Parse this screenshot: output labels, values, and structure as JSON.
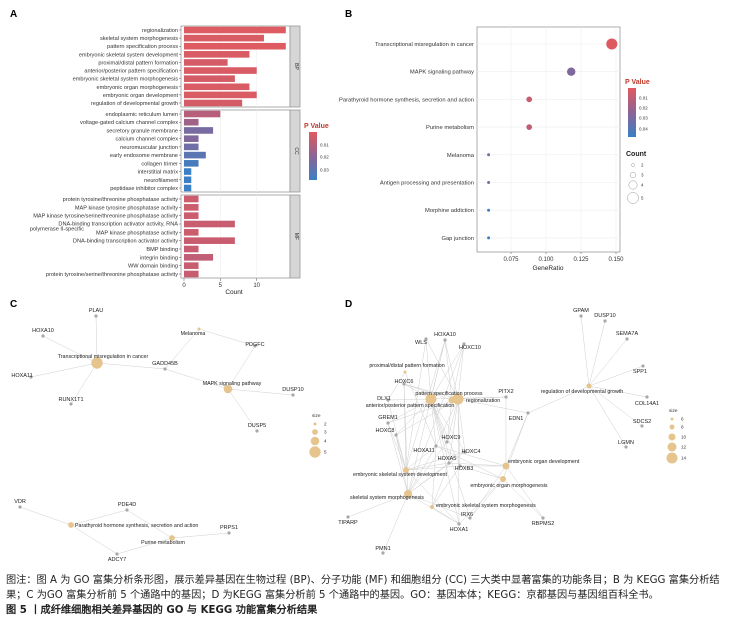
{
  "panels": {
    "a": "A",
    "b": "B",
    "c": "C",
    "d": "D"
  },
  "chart_data": [
    {
      "type": "bar",
      "orientation": "horizontal",
      "xlabel": "Count",
      "xticks": [
        0,
        5,
        10
      ],
      "xlim": [
        0,
        14.8
      ],
      "grid": true,
      "legend": {
        "title": "P Value",
        "ticks": [
          "0.01",
          "0.02",
          "0.03"
        ],
        "position": "right",
        "low_color": "#E15A5E",
        "high_color": "#3A80C4"
      },
      "facets": [
        {
          "name": "BP",
          "categories": [
            "regionalization",
            "skeletal system morphogenesis",
            "pattern specification process",
            "embryonic skeletal system development",
            "proximal/distal pattern formation",
            "anterior/posterior pattern specification",
            "embryonic skeletal system morphogenesis",
            "embryonic organ morphogenesis",
            "embryonic organ development",
            "regulation of developmental growth"
          ],
          "values": [
            14,
            11,
            14,
            9,
            6,
            10,
            7,
            9,
            10,
            8
          ],
          "pvalues": [
            0.001,
            0.002,
            0.001,
            0.002,
            0.003,
            0.002,
            0.003,
            0.002,
            0.002,
            0.003
          ]
        },
        {
          "name": "CC",
          "categories": [
            "endoplasmic reticulum lumen",
            "voltage-gated calcium channel complex",
            "secretory granule membrane",
            "calcium channel complex",
            "neuromuscular junction",
            "early endosome membrane",
            "collagen trimer",
            "interstitial matrix",
            "neurofilament",
            "peptidase inhibitor complex"
          ],
          "values": [
            5,
            2,
            4,
            2,
            2,
            3,
            2,
            1,
            1,
            1
          ],
          "pvalues": [
            0.01,
            0.015,
            0.025,
            0.023,
            0.027,
            0.032,
            0.037,
            0.04,
            0.04,
            0.04
          ]
        },
        {
          "name": "MF",
          "categories": [
            "protein tyrosine/threonine phosphatase activity",
            "MAP kinase tyrosine phosphatase activity",
            "MAP kinase tyrosine/serine/threonine phosphatase activity",
            "DNA-binding transcription activator activity, RNA polymerase II-specific",
            "MAP kinase phosphatase activity",
            "DNA-binding transcription activator activity",
            "BMP binding",
            "integrin binding",
            "WW domain binding",
            "protein tyrosine/serine/threonine phosphatase activity"
          ],
          "values": [
            2,
            2,
            2,
            7,
            2,
            7,
            2,
            4,
            2,
            2
          ],
          "pvalues": [
            0.005,
            0.005,
            0.005,
            0.006,
            0.005,
            0.006,
            0.006,
            0.008,
            0.006,
            0.006
          ]
        }
      ]
    },
    {
      "type": "scatter",
      "xlabel": "GeneRatio",
      "xticks": [
        "0.075",
        "0.100",
        "0.125",
        "0.150"
      ],
      "xlim": [
        0.053,
        0.152
      ],
      "grid": true,
      "categories": [
        "Transcriptional misregulation in cancer",
        "MAPK signaling pathway",
        "Parathyroid hormone synthesis, secretion and action",
        "Purine metabolism",
        "Melanoma",
        "Antigen processing and presentation",
        "Morphine addiction",
        "Gap junction"
      ],
      "gene_ratio": [
        0.147,
        0.118,
        0.088,
        0.088,
        0.059,
        0.059,
        0.059,
        0.059
      ],
      "count": [
        5,
        4,
        3,
        3,
        2,
        2,
        2,
        2
      ],
      "pvalues": [
        0.003,
        0.028,
        0.009,
        0.011,
        0.03,
        0.031,
        0.045,
        0.045
      ],
      "legend": {
        "color_title": "P Value",
        "color_ticks": [
          "0.01",
          "0.02",
          "0.03",
          "0.04"
        ],
        "size_title": "Count",
        "size_ticks": [
          "2",
          "3",
          "4",
          "5"
        ],
        "position": "right"
      }
    }
  ],
  "network_c": {
    "size_legend": {
      "title": "size",
      "ticks": [
        "2",
        "3",
        "4",
        "5"
      ]
    },
    "terms": [
      {
        "name": "Transcriptional misregulation in cancer",
        "size": 5
      },
      {
        "name": "MAPK signaling pathway",
        "size": 4
      },
      {
        "name": "Melanoma",
        "size": 2
      },
      {
        "name": "Parathyroid hormone synthesis, secretion and action",
        "size": 3
      },
      {
        "name": "Purine metabolism",
        "size": 3
      }
    ],
    "genes": [
      {
        "name": "PLAU",
        "terms": [
          "Transcriptional misregulation in cancer"
        ]
      },
      {
        "name": "HOXA10",
        "terms": [
          "Transcriptional misregulation in cancer"
        ]
      },
      {
        "name": "HOXA11",
        "terms": [
          "Transcriptional misregulation in cancer"
        ]
      },
      {
        "name": "RUNX1T1",
        "terms": [
          "Transcriptional misregulation in cancer"
        ]
      },
      {
        "name": "GADD45B",
        "terms": [
          "Transcriptional misregulation in cancer",
          "MAPK signaling pathway",
          "Melanoma"
        ]
      },
      {
        "name": "PDGFC",
        "terms": [
          "MAPK signaling pathway",
          "Melanoma"
        ]
      },
      {
        "name": "DUSP10",
        "terms": [
          "MAPK signaling pathway"
        ]
      },
      {
        "name": "DUSP5",
        "terms": [
          "MAPK signaling pathway"
        ]
      },
      {
        "name": "VDR",
        "terms": [
          "Parathyroid hormone synthesis, secretion and action"
        ]
      },
      {
        "name": "PDE4D",
        "terms": [
          "Parathyroid hormone synthesis, secretion and action",
          "Purine metabolism"
        ]
      },
      {
        "name": "ADCY7",
        "terms": [
          "Parathyroid hormone synthesis, secretion and action",
          "Purine metabolism"
        ]
      },
      {
        "name": "PRPS1",
        "terms": [
          "Purine metabolism"
        ]
      }
    ]
  },
  "network_d": {
    "size_legend": {
      "title": "size",
      "ticks": [
        "6",
        "8",
        "10",
        "12",
        "14"
      ]
    },
    "terms": [
      {
        "name": "regionalization",
        "size": 14
      },
      {
        "name": "pattern specification process",
        "size": 14
      },
      {
        "name": "anterior/posterior pattern specification",
        "size": 10
      },
      {
        "name": "proximal/distal pattern formation",
        "size": 6
      },
      {
        "name": "embryonic skeletal system development",
        "size": 9
      },
      {
        "name": "skeletal system morphogenesis",
        "size": 11
      },
      {
        "name": "embryonic skeletal system morphogenesis",
        "size": 7
      },
      {
        "name": "embryonic organ development",
        "size": 10
      },
      {
        "name": "embryonic organ morphogenesis",
        "size": 9
      },
      {
        "name": "regulation of developmental growth",
        "size": 8
      }
    ],
    "genes": [
      {
        "name": "GPAM",
        "terms": [
          "regulation of developmental growth"
        ]
      },
      {
        "name": "DUSP10",
        "terms": [
          "regulation of developmental growth"
        ]
      },
      {
        "name": "SEMA7A",
        "terms": [
          "regulation of developmental growth"
        ]
      },
      {
        "name": "SPP1",
        "terms": [
          "regulation of developmental growth"
        ]
      },
      {
        "name": "COL14A1",
        "terms": [
          "regulation of developmental growth"
        ]
      },
      {
        "name": "SDCS2",
        "terms": [
          "regulation of developmental growth"
        ]
      },
      {
        "name": "LGMN",
        "terms": [
          "regulation of developmental growth"
        ]
      },
      {
        "name": "EDN1",
        "terms": [
          "regulation of developmental growth",
          "embryonic organ development",
          "embryonic organ morphogenesis",
          "regionalization"
        ]
      },
      {
        "name": "PITX2",
        "terms": [
          "regionalization",
          "pattern specification process",
          "embryonic organ development"
        ]
      },
      {
        "name": "WLS",
        "terms": [
          "pattern specification process",
          "regionalization",
          "embryonic skeletal system development"
        ]
      },
      {
        "name": "HOXA10",
        "terms": [
          "pattern specification process",
          "regionalization",
          "anterior/posterior pattern specification",
          "embryonic skeletal system development",
          "skeletal system morphogenesis"
        ]
      },
      {
        "name": "HOXC10",
        "terms": [
          "pattern specification process",
          "regionalization",
          "anterior/posterior pattern specification",
          "skeletal system morphogenesis"
        ]
      },
      {
        "name": "HOXC6",
        "terms": [
          "pattern specification process",
          "regionalization",
          "anterior/posterior pattern specification",
          "embryonic skeletal system development",
          "skeletal system morphogenesis"
        ]
      },
      {
        "name": "DLX1",
        "terms": [
          "pattern specification process",
          "proximal/distal pattern formation",
          "embryonic skeletal system development"
        ]
      },
      {
        "name": "GREM1",
        "terms": [
          "pattern specification process",
          "regionalization",
          "embryonic skeletal system development",
          "skeletal system morphogenesis"
        ]
      },
      {
        "name": "HOXC8",
        "terms": [
          "pattern specification process",
          "regionalization",
          "embryonic skeletal system development",
          "skeletal system morphogenesis"
        ]
      },
      {
        "name": "HOXC9",
        "terms": [
          "pattern specification process",
          "regionalization",
          "anterior/posterior pattern specification",
          "skeletal system morphogenesis"
        ]
      },
      {
        "name": "HOXA11",
        "terms": [
          "pattern specification process",
          "regionalization",
          "proximal/distal pattern formation",
          "embryonic skeletal system development",
          "skeletal system morphogenesis",
          "embryonic skeletal system morphogenesis",
          "embryonic organ development",
          "embryonic organ morphogenesis"
        ]
      },
      {
        "name": "HOXC4",
        "terms": [
          "pattern specification process",
          "regionalization",
          "embryonic skeletal system development",
          "skeletal system morphogenesis"
        ]
      },
      {
        "name": "HOXA5",
        "terms": [
          "pattern specification process",
          "regionalization",
          "embryonic skeletal system development",
          "skeletal system morphogenesis",
          "embryonic skeletal system morphogenesis",
          "embryonic organ development"
        ]
      },
      {
        "name": "HOXB3",
        "terms": [
          "pattern specification process",
          "regionalization",
          "embryonic skeletal system development",
          "embryonic skeletal system morphogenesis",
          "embryonic organ development",
          "embryonic organ morphogenesis"
        ]
      },
      {
        "name": "IRX6",
        "terms": [
          "pattern specification process",
          "embryonic organ development",
          "embryonic organ morphogenesis",
          "skeletal system morphogenesis"
        ]
      },
      {
        "name": "HOXA1",
        "terms": [
          "pattern specification process",
          "regionalization",
          "embryonic skeletal system development",
          "skeletal system morphogenesis",
          "embryonic skeletal system morphogenesis",
          "embryonic organ morphogenesis"
        ]
      },
      {
        "name": "RBPMS2",
        "terms": [
          "embryonic organ development",
          "embryonic organ morphogenesis"
        ]
      },
      {
        "name": "TIPARP",
        "terms": [
          "skeletal system morphogenesis"
        ]
      },
      {
        "name": "PMN1",
        "terms": [
          "skeletal system morphogenesis"
        ]
      }
    ]
  },
  "caption": {
    "note": "图注：图 A 为 GO 富集分析条形图，展示差异基因在生物过程 (BP)、分子功能 (MF) 和细胞组分 (CC) 三大类中显著富集的功能条目；B 为 KEGG 富集分析结果；C 为GO 富集分析前 5 个通路中的基因；D 为KEGG 富集分析前 5 个通路中的基因。GO：基因本体；KEGG：京都基因与基因组百科全书。",
    "title": "图 5 丨成纤维细胞相关差异基因的 GO 与 KEGG 功能富集分析结果"
  },
  "colors": {
    "term_node": "#E6C48E",
    "gene_node": "#A8A8A8",
    "edge": "#CFCFCF",
    "bar_low_p": "#E15A5E",
    "bar_high_p": "#3A80C4"
  }
}
